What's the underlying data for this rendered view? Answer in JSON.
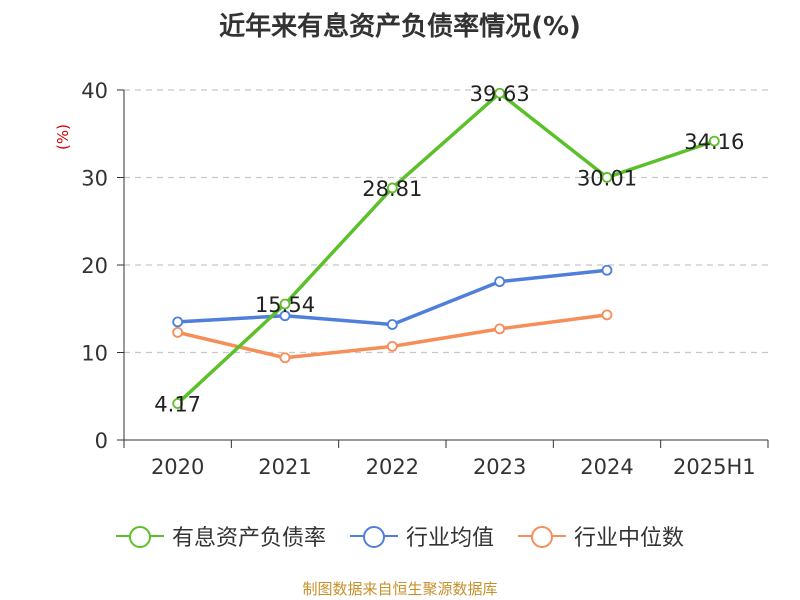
{
  "title": "近年来有息资产负债率情况(%)",
  "source": "制图数据来自恒生聚源数据库",
  "colors": {
    "有息资产负债率": "#5cc02a",
    "行业均值": "#4f7fdb",
    "行业中位数": "#f58e58",
    "grid": "#c8c8c8",
    "axis": "#333333",
    "ylabel": "#d40000",
    "source": "#c8902a"
  },
  "chart_data": {
    "type": "line",
    "title": "近年来有息资产负债率情况(%)",
    "xlabel": "",
    "ylabel": "(%)",
    "categories": [
      "2020",
      "2021",
      "2022",
      "2023",
      "2024",
      "2025H1"
    ],
    "ylim": [
      0,
      40
    ],
    "yticks": [
      0,
      10,
      20,
      30,
      40
    ],
    "grid": true,
    "legend_position": "bottom",
    "series": [
      {
        "name": "有息资产负债率",
        "values": [
          4.17,
          15.54,
          28.81,
          39.63,
          30.01,
          34.16
        ],
        "labels": [
          "4.17",
          "15.54",
          "28.81",
          "39.63",
          "30.01",
          "34.16"
        ]
      },
      {
        "name": "行业均值",
        "values": [
          13.5,
          14.2,
          13.2,
          18.1,
          19.4,
          null
        ]
      },
      {
        "name": "行业中位数",
        "values": [
          12.3,
          9.4,
          10.7,
          12.7,
          14.3,
          null
        ]
      }
    ]
  }
}
